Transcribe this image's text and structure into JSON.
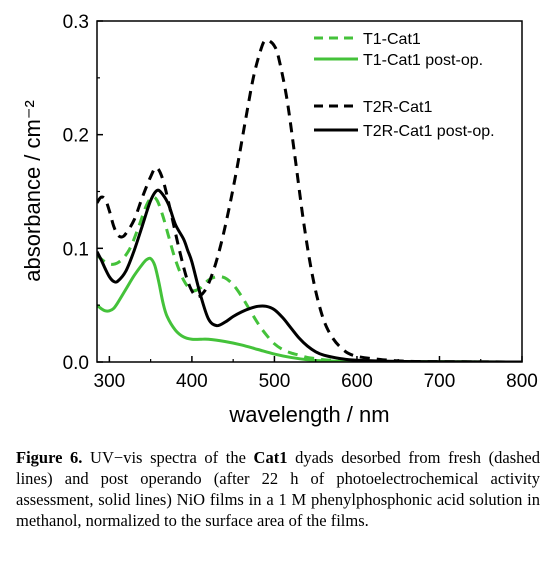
{
  "chart_data": {
    "type": "line",
    "xlabel": "wavelength / nm",
    "ylabel": "absorbance / cm⁻²",
    "xlim": [
      285,
      800
    ],
    "ylim": [
      0,
      0.3
    ],
    "xticks": [
      300,
      400,
      500,
      600,
      700,
      800
    ],
    "yticks": [
      0.0,
      0.1,
      0.2,
      0.3
    ],
    "legend_position": "top-right",
    "series": [
      {
        "name": "T1-Cat1",
        "color": "#44c23a",
        "dash": "dashed",
        "x": [
          285,
          295,
          305,
          315,
          325,
          335,
          345,
          352,
          358,
          365,
          372,
          380,
          390,
          400,
          410,
          420,
          430,
          440,
          450,
          460,
          470,
          480,
          490,
          500,
          510,
          520,
          530,
          540,
          550,
          560,
          570,
          580,
          600,
          650,
          700,
          800
        ],
        "y": [
          0.094,
          0.088,
          0.086,
          0.09,
          0.1,
          0.118,
          0.138,
          0.145,
          0.142,
          0.128,
          0.11,
          0.09,
          0.072,
          0.063,
          0.065,
          0.072,
          0.075,
          0.074,
          0.068,
          0.058,
          0.046,
          0.034,
          0.024,
          0.016,
          0.011,
          0.008,
          0.006,
          0.004,
          0.003,
          0.002,
          0.0015,
          0.001,
          0.0005,
          0.0002,
          0.0001,
          0.0
        ]
      },
      {
        "name": "T1-Cat1 post-op.",
        "color": "#44c23a",
        "dash": "solid",
        "x": [
          285,
          290,
          295,
          300,
          305,
          310,
          320,
          330,
          340,
          345,
          350,
          355,
          360,
          365,
          370,
          380,
          390,
          400,
          410,
          420,
          440,
          460,
          480,
          500,
          520,
          540,
          560,
          600,
          700,
          800
        ],
        "y": [
          0.05,
          0.047,
          0.045,
          0.045,
          0.047,
          0.052,
          0.064,
          0.076,
          0.086,
          0.09,
          0.091,
          0.085,
          0.07,
          0.052,
          0.04,
          0.028,
          0.022,
          0.02,
          0.02,
          0.02,
          0.018,
          0.015,
          0.011,
          0.007,
          0.004,
          0.002,
          0.001,
          0.0005,
          0.0002,
          0.0
        ]
      },
      {
        "name": "T2R-Cat1",
        "color": "#000000",
        "dash": "dashed",
        "x": [
          285,
          290,
          295,
          300,
          305,
          310,
          315,
          320,
          330,
          340,
          350,
          357,
          365,
          375,
          385,
          395,
          405,
          415,
          425,
          435,
          445,
          455,
          465,
          475,
          485,
          490,
          495,
          500,
          505,
          515,
          525,
          535,
          545,
          555,
          565,
          580,
          600,
          650,
          700,
          800
        ],
        "y": [
          0.14,
          0.145,
          0.143,
          0.133,
          0.12,
          0.112,
          0.11,
          0.113,
          0.125,
          0.145,
          0.163,
          0.171,
          0.16,
          0.13,
          0.098,
          0.071,
          0.058,
          0.062,
          0.078,
          0.103,
          0.135,
          0.172,
          0.213,
          0.252,
          0.278,
          0.283,
          0.282,
          0.278,
          0.268,
          0.232,
          0.18,
          0.125,
          0.08,
          0.048,
          0.028,
          0.013,
          0.005,
          0.001,
          0.0003,
          0.0
        ]
      },
      {
        "name": "T2R-Cat1 post-op.",
        "color": "#000000",
        "dash": "solid",
        "x": [
          285,
          290,
          295,
          300,
          305,
          310,
          320,
          330,
          340,
          350,
          358,
          365,
          372,
          380,
          390,
          395,
          400,
          410,
          420,
          430,
          440,
          450,
          460,
          470,
          480,
          490,
          500,
          510,
          520,
          530,
          540,
          550,
          560,
          580,
          600,
          650,
          700,
          800
        ],
        "y": [
          0.097,
          0.09,
          0.082,
          0.075,
          0.071,
          0.071,
          0.08,
          0.098,
          0.12,
          0.142,
          0.151,
          0.147,
          0.138,
          0.121,
          0.108,
          0.098,
          0.088,
          0.06,
          0.038,
          0.032,
          0.035,
          0.04,
          0.044,
          0.047,
          0.049,
          0.049,
          0.046,
          0.039,
          0.03,
          0.021,
          0.014,
          0.009,
          0.006,
          0.003,
          0.0015,
          0.0005,
          0.0002,
          0.0
        ]
      }
    ]
  },
  "caption": {
    "label": "Figure 6.",
    "text_1": " UV−vis spectra of the ",
    "bold_term": "Cat1",
    "text_2": " dyads desorbed from fresh (dashed lines) and post operando (after 22 h of photoelectrochemical activity assessment, solid lines) NiO films in a 1 M phenylphosphonic acid solution in methanol, normalized to the surface area of the films."
  }
}
